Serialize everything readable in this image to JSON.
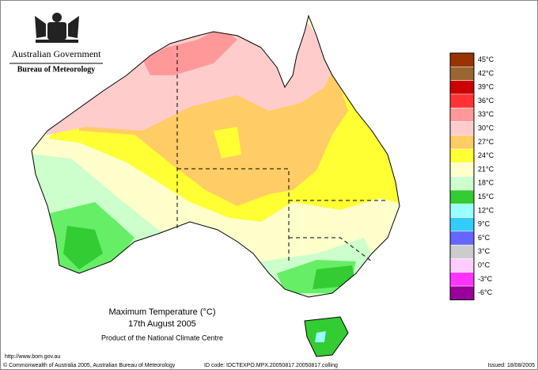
{
  "header": {
    "government": "Australian Government",
    "bureau": "Bureau of Meteorology"
  },
  "legend": {
    "entries": [
      {
        "label": "45°C",
        "color": "#993300"
      },
      {
        "label": "42°C",
        "color": "#996633"
      },
      {
        "label": "39°C",
        "color": "#cc0000"
      },
      {
        "label": "36°C",
        "color": "#ff3333"
      },
      {
        "label": "33°C",
        "color": "#ff9999"
      },
      {
        "label": "30°C",
        "color": "#ffcccc"
      },
      {
        "label": "27°C",
        "color": "#ffcc66"
      },
      {
        "label": "24°C",
        "color": "#ffff33"
      },
      {
        "label": "21°C",
        "color": "#ffffcc"
      },
      {
        "label": "18°C",
        "color": "#ccffcc"
      },
      {
        "label": "15°C",
        "color": "#33cc33"
      },
      {
        "label": "12°C",
        "color": "#99ffff"
      },
      {
        "label": "9°C",
        "color": "#33ccff"
      },
      {
        "label": "6°C",
        "color": "#6666ff"
      },
      {
        "label": "3°C",
        "color": "#cccccc"
      },
      {
        "label": "0°C",
        "color": "#ffccff"
      },
      {
        "label": "-3°C",
        "color": "#ff33ff"
      },
      {
        "label": "-6°C",
        "color": "#990099"
      }
    ]
  },
  "caption": {
    "title": "Maximum Temperature (°C)",
    "date": "17th August 2005",
    "product": "Product of the National Climate Centre"
  },
  "footer": {
    "url": "http://www.bom.gov.au",
    "copyright": "© Commonwealth of Australia 2005, Australian Bureau of Meteorology",
    "id_code": "ID code: IDCTEXPO.MPX.20050817.20050817.colling",
    "issued": "Issued: 18/08/2005"
  }
}
